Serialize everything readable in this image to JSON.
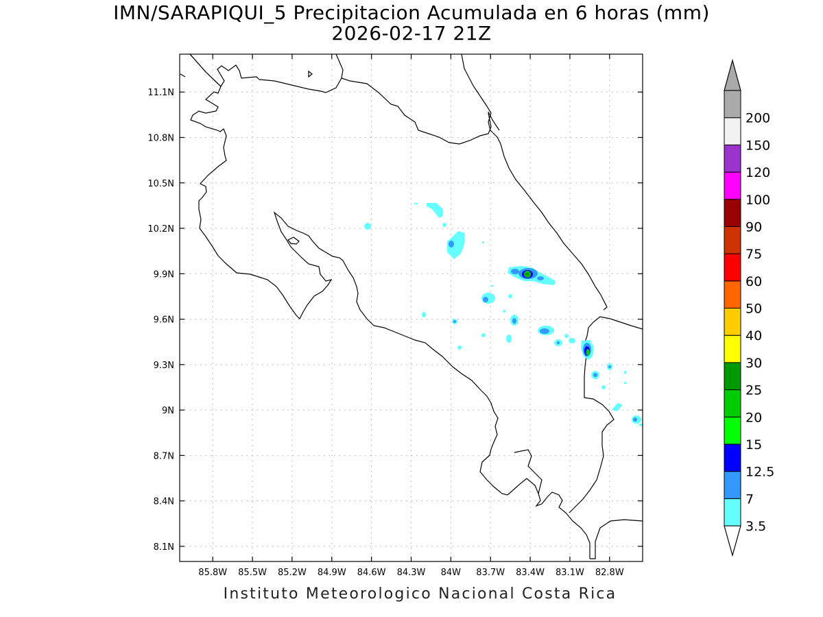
{
  "title": {
    "line1": "IMN/SARAPIQUI_5 Precipitacion Acumulada en 6 horas (mm)",
    "line2": "2026-02-17 21Z"
  },
  "credit": "Instituto Meteorologico Nacional Costa Rica",
  "map": {
    "lon_range": [
      -86.05,
      -82.55
    ],
    "lat_range": [
      8.0,
      11.35
    ],
    "lon_ticks": [
      "85.8W",
      "85.5W",
      "85.2W",
      "84.9W",
      "84.6W",
      "84.3W",
      "84W",
      "83.7W",
      "83.4W",
      "83.1W",
      "82.8W"
    ],
    "lat_ticks": [
      "11.1N",
      "10.8N",
      "10.5N",
      "10.2N",
      "9.9N",
      "9.6N",
      "9.3N",
      "9N",
      "8.7N",
      "8.4N",
      "8.1N"
    ],
    "gridlines": true
  },
  "colorbar": {
    "levels": [
      "3.5",
      "7",
      "12.5",
      "15",
      "20",
      "25",
      "30",
      "40",
      "50",
      "60",
      "75",
      "90",
      "100",
      "120",
      "150",
      "200"
    ],
    "colors": [
      "#66ffff",
      "#3399ff",
      "#0000ff",
      "#00ff00",
      "#00cc00",
      "#009900",
      "#ffff00",
      "#ffcc00",
      "#ff6600",
      "#ff0000",
      "#cc3300",
      "#990000",
      "#ff00ff",
      "#9933cc",
      "#f2f2f2",
      "#aaaaaa"
    ]
  }
}
